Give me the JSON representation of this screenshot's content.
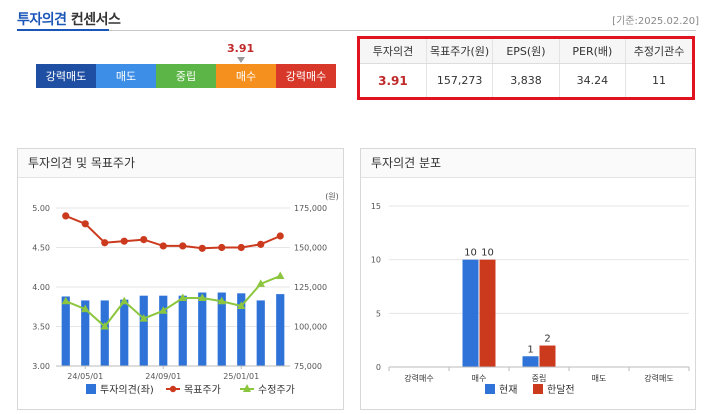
{
  "header": {
    "title": "투자의견",
    "subtitle": "컨센서스",
    "date": "[기준:2025.02.20]"
  },
  "scale": {
    "value": "3.91",
    "level": 3.91,
    "segments": [
      {
        "label": "강력매도",
        "color": "#1f4fa3"
      },
      {
        "label": "매도",
        "color": "#3d8ee6"
      },
      {
        "label": "중립",
        "color": "#5cb547"
      },
      {
        "label": "매수",
        "color": "#f5901e"
      },
      {
        "label": "강력매수",
        "color": "#d8382a"
      }
    ]
  },
  "consensus": {
    "headers": [
      "투자의견",
      "목표주가(원)",
      "EPS(원)",
      "PER(배)",
      "추정기관수"
    ],
    "values": [
      "3.91",
      "157,273",
      "3,838",
      "34.24",
      "11"
    ]
  },
  "left_panel": {
    "title": "투자의견 및 목표주가"
  },
  "right_panel": {
    "title": "투자의견 분포"
  },
  "chart_data": [
    {
      "type": "bar",
      "title": "투자의견 및 목표주가",
      "y_left_ticks": [
        "5.00",
        "4.50",
        "4.00",
        "3.50",
        "3.00"
      ],
      "y_left_range": [
        3.0,
        5.0
      ],
      "y_right_ticks": [
        "175,000",
        "150,000",
        "125,000",
        "100,000",
        "75,000"
      ],
      "y_right_range": [
        75000,
        175000
      ],
      "y_right_unit": "(원)",
      "x_ticks": [
        "24/05/01",
        "24/09/01",
        "25/01/01"
      ],
      "x_tick_index": [
        1,
        5,
        9
      ],
      "series": [
        {
          "name": "투자의견(좌)",
          "kind": "bar",
          "color": "#2f73d8",
          "values": [
            3.88,
            3.83,
            3.83,
            3.84,
            3.89,
            3.89,
            3.89,
            3.93,
            3.93,
            3.92,
            3.83,
            3.91
          ]
        },
        {
          "name": "목표주가",
          "kind": "line",
          "color": "#cc3a1e",
          "values": [
            170000,
            165000,
            153000,
            154000,
            155000,
            151000,
            151000,
            149500,
            150000,
            150000,
            152000,
            157273
          ]
        },
        {
          "name": "수정주가",
          "kind": "line",
          "color": "#8cc63e",
          "values": [
            116000,
            111000,
            100000,
            116000,
            105000,
            110000,
            118000,
            118000,
            116000,
            113000,
            127000,
            132000
          ]
        }
      ]
    },
    {
      "type": "bar",
      "title": "투자의견 분포",
      "categories": [
        "강력매수",
        "매수",
        "중립",
        "매도",
        "강력매도"
      ],
      "ylim": [
        0,
        15
      ],
      "y_ticks": [
        "15",
        "10",
        "5",
        "0"
      ],
      "series": [
        {
          "name": "현재",
          "color": "#2f73d8",
          "values": [
            0,
            10,
            1,
            0,
            0
          ]
        },
        {
          "name": "한달전",
          "color": "#cc3a1e",
          "values": [
            0,
            10,
            2,
            0,
            0
          ]
        }
      ]
    }
  ]
}
